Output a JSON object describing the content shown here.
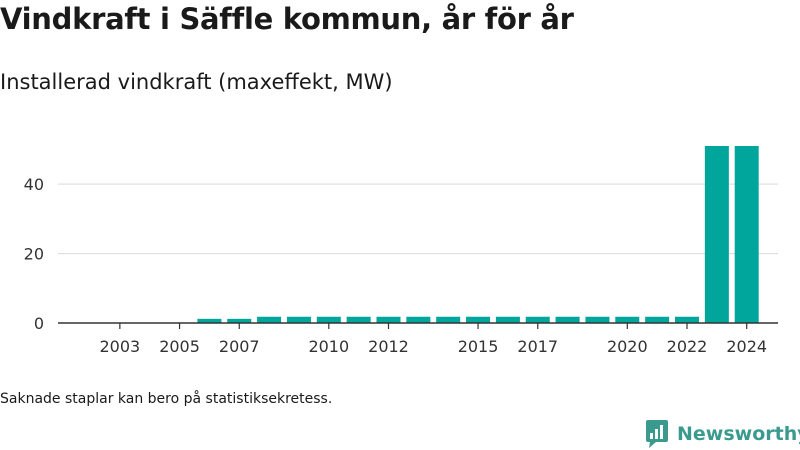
{
  "header": {
    "title": "Vindkraft i Säffle kommun, år för år",
    "subtitle": "Installerad vindkraft (maxeffekt, MW)"
  },
  "footer": {
    "note": "Saknade staplar kan bero på statistiksekretess.",
    "brand": "Newsworthy"
  },
  "colors": {
    "bar": "#00a59b",
    "grid": "#d9d9d9",
    "axis": "#333333",
    "brand": "#3b9a8e"
  },
  "chart_data": {
    "type": "bar",
    "title": "Vindkraft i Säffle kommun, år för år",
    "subtitle": "Installerad vindkraft (maxeffekt, MW)",
    "xlabel": "",
    "ylabel": "",
    "categories": [
      "2002",
      "2003",
      "2004",
      "2005",
      "2006",
      "2007",
      "2008",
      "2009",
      "2010",
      "2011",
      "2012",
      "2013",
      "2014",
      "2015",
      "2016",
      "2017",
      "2018",
      "2019",
      "2020",
      "2021",
      "2022",
      "2023",
      "2024"
    ],
    "values": [
      0,
      0,
      0,
      0,
      1.2,
      1.2,
      1.8,
      1.8,
      1.8,
      1.8,
      1.8,
      1.8,
      1.8,
      1.8,
      1.8,
      1.8,
      1.8,
      1.8,
      1.8,
      1.8,
      1.8,
      51,
      51
    ],
    "x_tick_labels": [
      "2003",
      "2005",
      "2007",
      "2010",
      "2012",
      "2015",
      "2017",
      "2020",
      "2022",
      "2024"
    ],
    "y_ticks": [
      0,
      20,
      40
    ],
    "ylim": [
      0,
      55
    ],
    "grid": true,
    "legend": "none"
  }
}
